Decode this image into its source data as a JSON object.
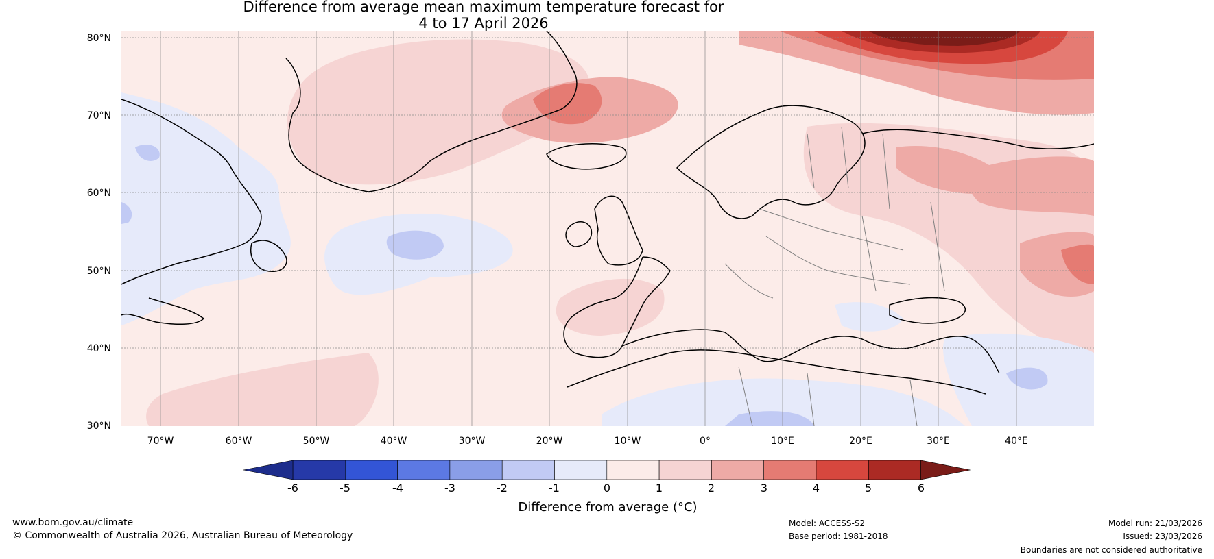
{
  "title": {
    "line1": "Difference from average mean maximum temperature forecast for",
    "line2": "4 to 17 April 2026"
  },
  "latitude_labels": [
    "80°N",
    "70°N",
    "60°N",
    "50°N",
    "40°N",
    "30°N"
  ],
  "longitude_labels": [
    "70°W",
    "60°W",
    "50°W",
    "40°W",
    "30°W",
    "20°W",
    "10°W",
    "0°",
    "10°E",
    "20°E",
    "30°E",
    "40°E"
  ],
  "colorbar": {
    "ticks": [
      "-6",
      "-5",
      "-4",
      "-3",
      "-2",
      "-1",
      "0",
      "1",
      "2",
      "3",
      "4",
      "5",
      "6"
    ],
    "colors": [
      "#2639a8",
      "#3355d6",
      "#5c79e3",
      "#8a9ee8",
      "#c1caf4",
      "#e6eafa",
      "#fcece9",
      "#f6d4d3",
      "#eeaaa6",
      "#e57b73",
      "#d7473e",
      "#ab2a24"
    ],
    "under_color": "#1d2d8c",
    "over_color": "#7a1c18",
    "label": "Difference from average (°C)"
  },
  "footer": {
    "website": "www.bom.gov.au/climate",
    "copyright": "© Commonwealth of Australia 2026, Australian Bureau of Meteorology",
    "model": "Model: ACCESS-S2",
    "base_period": "Base period: 1981-2018",
    "model_run": "Model run: 21/03/2026",
    "issued": "Issued: 23/03/2026",
    "boundaries": "Boundaries are not considered authoritative"
  }
}
